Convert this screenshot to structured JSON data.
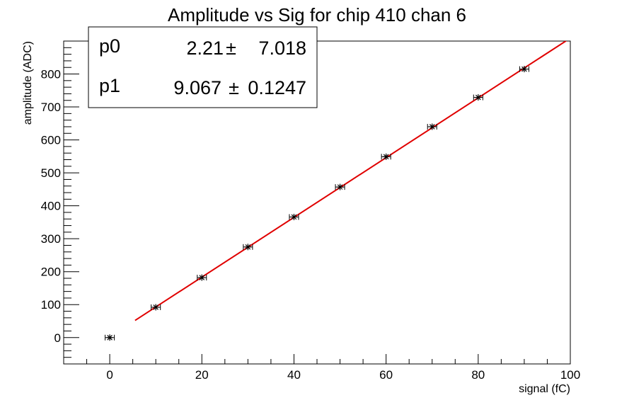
{
  "chart_data": {
    "type": "scatter",
    "title": "Amplitude vs Sig for chip 410 chan 6",
    "xlabel": "signal (fC)",
    "ylabel": "amplitude (ADC)",
    "xlim": [
      -10,
      100
    ],
    "ylim": [
      -80,
      900
    ],
    "x_ticks": [
      0,
      20,
      40,
      60,
      80,
      100
    ],
    "y_ticks": [
      0,
      100,
      200,
      300,
      400,
      500,
      600,
      700,
      800
    ],
    "x_minor_step": 5,
    "y_minor_step": 20,
    "grid": false,
    "series": [
      {
        "marker": "star",
        "color": "#000000",
        "x": [
          0,
          10,
          20,
          30,
          40,
          50,
          60,
          70,
          80,
          90
        ],
        "y": [
          0,
          92,
          182,
          275,
          366,
          457,
          549,
          640,
          729,
          815
        ],
        "x_err": [
          1,
          1,
          1,
          1,
          1,
          1,
          1,
          1,
          1,
          1
        ]
      }
    ],
    "fit": {
      "color": "#e00000",
      "x_range": [
        5.5,
        100
      ],
      "p0": 2.21,
      "p1": 9.067
    },
    "stats_box": {
      "placement": "top-left",
      "rows": [
        {
          "name": "p0",
          "value": "2.21",
          "pm": "±",
          "error": "7.018"
        },
        {
          "name": "p1",
          "value": "9.067",
          "pm": "±",
          "error": "0.1247"
        }
      ]
    }
  }
}
